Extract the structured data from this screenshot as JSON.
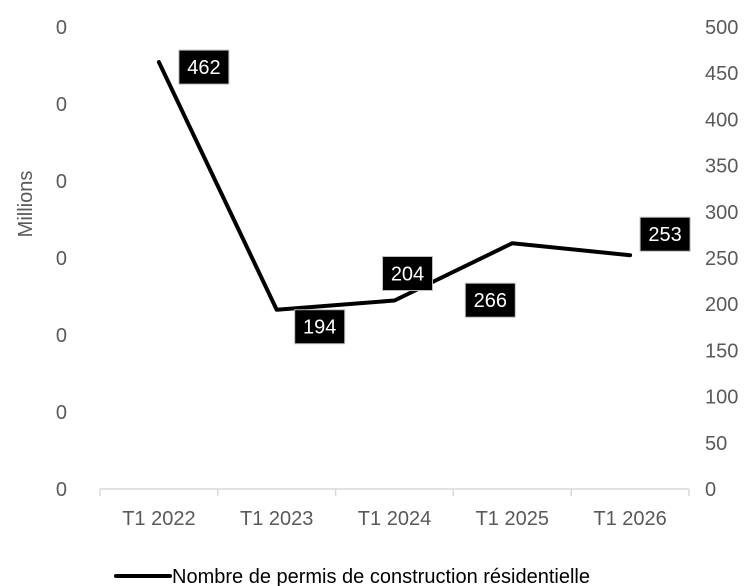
{
  "chart_data": {
    "type": "line",
    "title": "",
    "categories": [
      "T1 2022",
      "T1 2023",
      "T1 2024",
      "T1 2025",
      "T1 2026"
    ],
    "series": [
      {
        "name": "Nombre de permis de construction résidentielle",
        "axis": "right",
        "color": "#000000",
        "values": [
          462,
          194,
          204,
          266,
          253
        ],
        "data_labels": [
          "462",
          "194",
          "204",
          "266",
          "253"
        ]
      }
    ],
    "y_left": {
      "label": "Millions",
      "tick_labels": [
        "0",
        "0",
        "0",
        "0",
        "0",
        "0",
        "0"
      ]
    },
    "y_right": {
      "label": "",
      "ylim": [
        0,
        500
      ],
      "ticks": [
        0,
        50,
        100,
        150,
        200,
        250,
        300,
        350,
        400,
        450,
        500
      ],
      "tick_labels": [
        "0",
        "50",
        "100",
        "150",
        "200",
        "250",
        "300",
        "350",
        "400",
        "450",
        "500"
      ]
    },
    "grid": false,
    "legend": "bottom",
    "colors": {
      "line": "#000000",
      "axis_text": "#595959",
      "axis_line": "#d9d9d9",
      "label_box": "#000000",
      "label_text": "#ffffff"
    }
  }
}
